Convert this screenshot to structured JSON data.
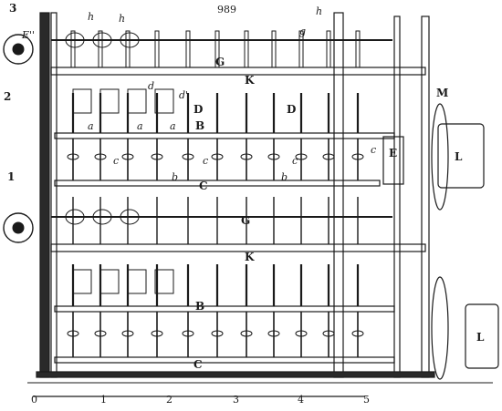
{
  "figure_number": "989",
  "labels": {
    "n3": "3",
    "n2": "2",
    "n1": "1",
    "e_prime": "E''",
    "h1": "h",
    "h2": "h",
    "h3": "h",
    "g1": "g",
    "G1": "G",
    "K1": "K",
    "M": "M",
    "d1": "d",
    "d2": "d'",
    "a1": "a",
    "a2": "a",
    "a3": "a",
    "D1": "D",
    "D2": "D",
    "B1": "B",
    "c1": "c",
    "c2": "c",
    "c3": "c",
    "c4": "c",
    "b1": "b",
    "b2": "b",
    "C1": "C",
    "E": "E",
    "L1": "L",
    "G2": "G",
    "K2": "K",
    "B2": "B",
    "C2": "C",
    "L2": "L"
  },
  "scale": {
    "s0": "0",
    "s1": "1",
    "s2": "2",
    "s3": "3",
    "s4": "4",
    "s5": "5"
  }
}
